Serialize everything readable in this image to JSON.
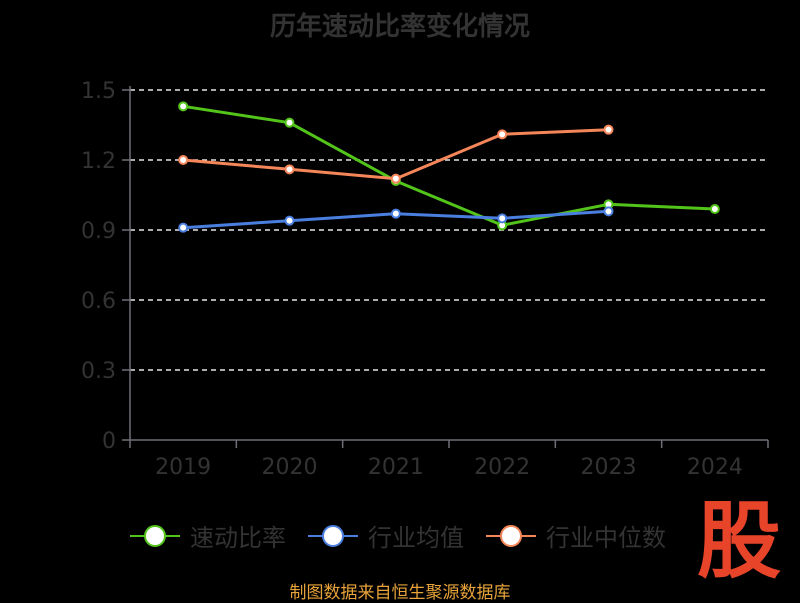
{
  "chart_data": {
    "type": "line",
    "title": "历年速动比率变化情况",
    "categories": [
      "2019",
      "2020",
      "2021",
      "2022",
      "2023",
      "2024"
    ],
    "series": [
      {
        "name": "速动比率",
        "color": "#52c41a",
        "values": [
          1.43,
          1.36,
          1.11,
          0.92,
          1.01,
          0.99
        ]
      },
      {
        "name": "行业均值",
        "color": "#4a7fe0",
        "values": [
          0.91,
          0.94,
          0.97,
          0.95,
          0.98,
          null
        ]
      },
      {
        "name": "行业中位数",
        "color": "#f5865a",
        "values": [
          1.2,
          1.16,
          1.12,
          1.31,
          1.33,
          null
        ]
      }
    ],
    "ylim": [
      0,
      1.5
    ],
    "yticks": [
      "0",
      "0.3",
      "0.6",
      "0.9",
      "1.2",
      "1.5"
    ],
    "grid": true,
    "legend_position": "bottom"
  },
  "footer": "制图数据来自恒生聚源数据库",
  "logo_text": "股"
}
